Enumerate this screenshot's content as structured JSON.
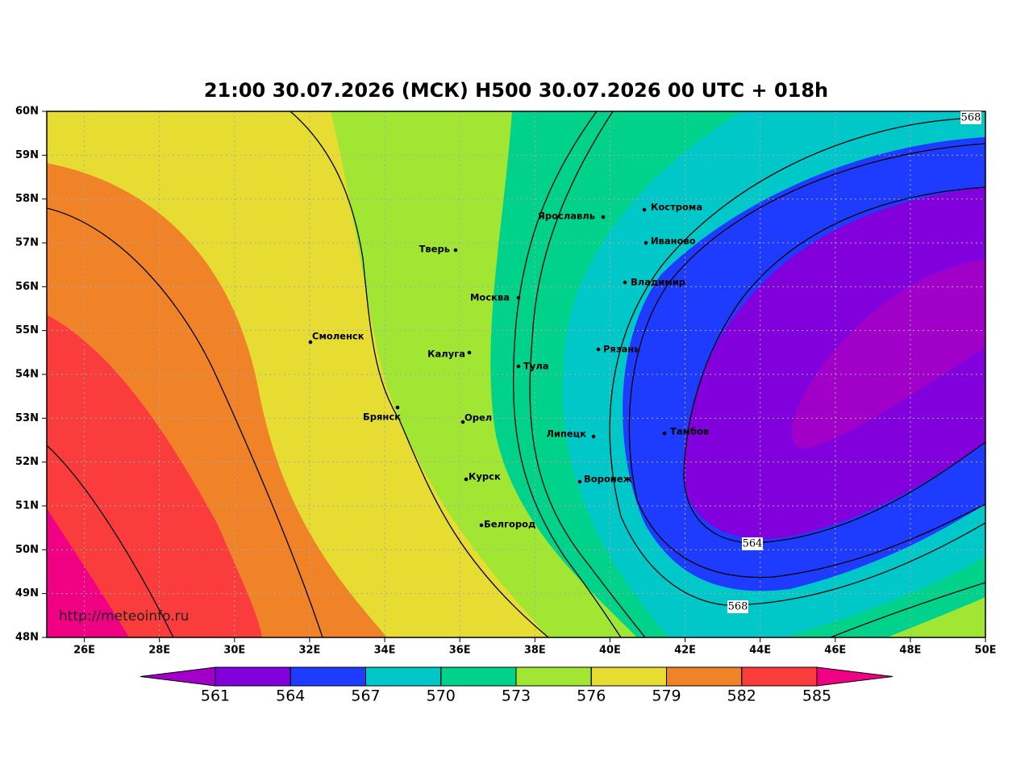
{
  "title": "21:00 30.07.2026 (МСК) H500  30.07.2026 00 UTC + 018h",
  "lat_labels": [
    "60N",
    "59N",
    "58N",
    "57N",
    "56N",
    "55N",
    "54N",
    "53N",
    "52N",
    "51N",
    "50N",
    "49N",
    "48N"
  ],
  "lon_labels": [
    "26E",
    "28E",
    "30E",
    "32E",
    "34E",
    "36E",
    "38E",
    "40E",
    "42E",
    "44E",
    "46E",
    "48E",
    "50E"
  ],
  "cities": [
    "Кострома",
    "Ярославль",
    "Иваново",
    "Тверь",
    "Владимир",
    "Москва",
    "Смоленск",
    "Рязань",
    "Калуга",
    "Тула",
    "Брянск",
    "Орел",
    "Тамбов",
    "Липецк",
    "Курск",
    "Воронеж",
    "Белгород"
  ],
  "contour_labels": [
    568,
    564,
    568
  ],
  "colorbar": {
    "ticks": [
      561,
      564,
      567,
      570,
      573,
      576,
      579,
      582,
      585
    ],
    "colors": [
      "#a000c8",
      "#8200dc",
      "#1e3cff",
      "#00c8c8",
      "#00d28c",
      "#a0e632",
      "#e6dc32",
      "#f08228",
      "#fa3c3c",
      "#f00082"
    ]
  },
  "watermark": "http://meteoinfo.ru"
}
